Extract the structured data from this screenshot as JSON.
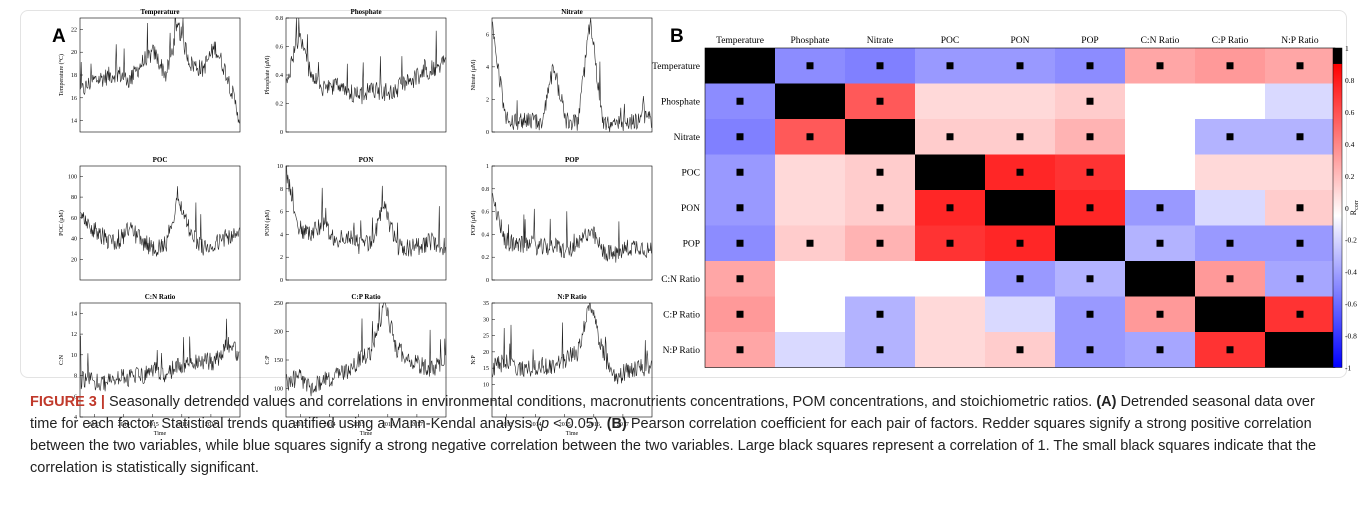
{
  "figure": {
    "panel_a_label": "A",
    "panel_b_label": "B"
  },
  "caption": {
    "fig_label": "FIGURE 3 |",
    "part1": " Seasonally detrended values and correlations in environmental conditions, macronutrients concentrations, POM concentrations, and stoichiometric ratios. ",
    "a_label": "(A)",
    "part2": " Detrended seasonal data over time for each factor. Statistical trends quantified using a Mann-Kendal analysis (",
    "p_italic": "p",
    "part3": " < 0.05). ",
    "b_label": "(B)",
    "part4": " Pearson correlation coefficient for each pair of factors. Redder squares signify a strong positive correlation between the two variables, while blue squares signify a strong negative correlation between the two variables. Large black squares represent a correlation of 1. The small black squares indicate that the correlation is statistically significant."
  },
  "chart_data": [
    {
      "type": "line",
      "title": "Temperature",
      "ylabel": "Temperature (°C)",
      "xlabel": "",
      "ylim": [
        13,
        23
      ],
      "yticks": [
        14,
        16,
        18,
        20,
        22
      ],
      "xlim": [
        2012.5,
        2018
      ],
      "xticks": [],
      "series": [
        {
          "values": [
            16.5,
            17.5,
            17.8,
            18.2,
            17.5,
            19.0,
            20.0,
            18.0,
            22.2,
            19.0,
            18.5,
            20.5,
            18.0,
            14.2
          ]
        }
      ]
    },
    {
      "type": "line",
      "title": "Phosphate",
      "ylabel": "Phosphate (μM)",
      "xlabel": "",
      "ylim": [
        0,
        0.8
      ],
      "yticks": [
        0,
        0.2,
        0.4,
        0.6,
        0.8
      ],
      "xlim": [
        2012.5,
        2018
      ],
      "xticks": [],
      "series": [
        {
          "values": [
            0.35,
            0.68,
            0.4,
            0.3,
            0.32,
            0.28,
            0.25,
            0.3,
            0.28,
            0.3,
            0.35,
            0.4,
            0.45,
            0.5
          ]
        }
      ]
    },
    {
      "type": "line",
      "title": "Nitrate",
      "ylabel": "Nitrate (μM)",
      "xlabel": "",
      "ylim": [
        0,
        7
      ],
      "yticks": [
        0,
        2,
        4,
        6
      ],
      "xlim": [
        2012.5,
        2018
      ],
      "xticks": [],
      "series": [
        {
          "values": [
            6.5,
            1.0,
            0.5,
            0.8,
            0.6,
            4.0,
            0.7,
            0.6,
            6.8,
            0.5,
            0.6,
            0.5,
            0.8,
            0.7
          ]
        }
      ]
    },
    {
      "type": "line",
      "title": "POC",
      "ylabel": "POC (μM)",
      "xlabel": "",
      "ylim": [
        0,
        110
      ],
      "yticks": [
        20,
        40,
        60,
        80,
        100
      ],
      "xlim": [
        2012.5,
        2018
      ],
      "xticks": [],
      "series": [
        {
          "values": [
            60,
            50,
            40,
            35,
            50,
            38,
            30,
            35,
            80,
            45,
            30,
            35,
            40,
            45
          ]
        }
      ]
    },
    {
      "type": "line",
      "title": "PON",
      "ylabel": "PON (μM)",
      "xlabel": "",
      "ylim": [
        0,
        10
      ],
      "yticks": [
        0,
        2,
        4,
        6,
        8,
        10
      ],
      "xlim": [
        2012.5,
        2018
      ],
      "xticks": [],
      "series": [
        {
          "values": [
            9.5,
            4.5,
            4.0,
            5.0,
            3.5,
            4.0,
            3.0,
            3.5,
            6.5,
            3.0,
            2.8,
            3.0,
            3.5,
            2.5
          ]
        }
      ]
    },
    {
      "type": "line",
      "title": "POP",
      "ylabel": "POP (μM)",
      "xlabel": "",
      "ylim": [
        0,
        1
      ],
      "yticks": [
        0,
        0.2,
        0.4,
        0.6,
        0.8,
        1
      ],
      "xlim": [
        2012.5,
        2018
      ],
      "xticks": [],
      "series": [
        {
          "values": [
            0.7,
            0.35,
            0.3,
            0.32,
            0.28,
            0.3,
            0.25,
            0.3,
            0.45,
            0.25,
            0.22,
            0.28,
            0.3,
            0.25
          ]
        }
      ]
    },
    {
      "type": "line",
      "title": "C:N Ratio",
      "ylabel": "C:N",
      "xlabel": "Time",
      "ylim": [
        4,
        15
      ],
      "yticks": [
        4,
        6,
        8,
        10,
        12,
        14
      ],
      "xlim": [
        2012.5,
        2018
      ],
      "xticks": [
        2013,
        2014,
        2015,
        2016,
        2017
      ],
      "series": [
        {
          "values": [
            7.5,
            7.5,
            7.2,
            7.8,
            7.8,
            8.0,
            8.5,
            8.2,
            9.0,
            9.0,
            9.5,
            9.2,
            11.0,
            10.0
          ]
        }
      ]
    },
    {
      "type": "line",
      "title": "C:P Ratio",
      "ylabel": "C:P",
      "xlabel": "Time",
      "ylim": [
        50,
        250
      ],
      "yticks": [
        100,
        150,
        200,
        250
      ],
      "xlim": [
        2012.5,
        2018
      ],
      "xticks": [
        2013,
        2014,
        2015,
        2016,
        2017
      ],
      "series": [
        {
          "values": [
            110,
            120,
            100,
            115,
            120,
            130,
            150,
            165,
            250,
            170,
            150,
            140,
            135,
            145
          ]
        }
      ]
    },
    {
      "type": "line",
      "title": "N:P Ratio",
      "ylabel": "N:P",
      "xlabel": "Time",
      "ylim": [
        0,
        35
      ],
      "yticks": [
        5,
        10,
        15,
        20,
        25,
        30,
        35
      ],
      "xlim": [
        2012.5,
        2018
      ],
      "xticks": [
        2013,
        2014,
        2015,
        2016,
        2017
      ],
      "series": [
        {
          "values": [
            15,
            17,
            14,
            15,
            16,
            15,
            18,
            20,
            35,
            20,
            12,
            14,
            15,
            15
          ]
        }
      ]
    },
    {
      "type": "heatmap",
      "title": "",
      "labels": [
        "Temperature",
        "Phosphate",
        "Nitrate",
        "POC",
        "PON",
        "POP",
        "C:N Ratio",
        "C:P Ratio",
        "N:P Ratio"
      ],
      "colorbar_label": "R",
      "colorbar_label_sub": "corr",
      "colorbar_ticks": [
        1,
        0.8,
        0.6,
        0.4,
        0.2,
        0,
        -0.2,
        -0.4,
        -0.6,
        -0.8,
        -1
      ],
      "colorbar_range": [
        -1,
        1
      ],
      "colors": {
        "positive": "#ff0000",
        "negative": "#0000ff",
        "zero": "#ffffff",
        "diagonal": "#000000"
      },
      "matrix": [
        [
          1.0,
          -0.45,
          -0.5,
          -0.4,
          -0.4,
          -0.45,
          0.35,
          0.4,
          0.35
        ],
        [
          -0.45,
          1.0,
          0.65,
          0.15,
          0.15,
          0.2,
          0.0,
          0.0,
          -0.15
        ],
        [
          -0.5,
          0.65,
          1.0,
          0.2,
          0.2,
          0.3,
          0.0,
          -0.3,
          -0.3
        ],
        [
          -0.4,
          0.15,
          0.2,
          1.0,
          0.85,
          0.8,
          0.0,
          0.15,
          0.15
        ],
        [
          -0.4,
          0.15,
          0.2,
          0.85,
          1.0,
          0.85,
          -0.4,
          -0.15,
          0.2
        ],
        [
          -0.45,
          0.2,
          0.3,
          0.8,
          0.85,
          1.0,
          -0.3,
          -0.4,
          -0.4
        ],
        [
          0.35,
          0.0,
          0.0,
          0.0,
          -0.4,
          -0.3,
          1.0,
          0.4,
          -0.35
        ],
        [
          0.4,
          0.0,
          -0.3,
          0.15,
          -0.15,
          -0.4,
          0.4,
          1.0,
          0.8
        ],
        [
          0.35,
          -0.15,
          -0.3,
          0.15,
          0.2,
          -0.4,
          -0.35,
          0.8,
          1.0
        ]
      ],
      "significant": [
        [
          0,
          1,
          1,
          1,
          1,
          1,
          1,
          1,
          1
        ],
        [
          1,
          0,
          1,
          0,
          0,
          1,
          0,
          0,
          0
        ],
        [
          1,
          1,
          0,
          1,
          1,
          1,
          0,
          1,
          1
        ],
        [
          1,
          0,
          1,
          0,
          1,
          1,
          0,
          0,
          0
        ],
        [
          1,
          0,
          1,
          1,
          0,
          1,
          1,
          0,
          1
        ],
        [
          1,
          1,
          1,
          1,
          1,
          0,
          1,
          1,
          1
        ],
        [
          1,
          0,
          0,
          0,
          1,
          1,
          0,
          1,
          1
        ],
        [
          1,
          0,
          1,
          0,
          0,
          1,
          1,
          0,
          1
        ],
        [
          1,
          0,
          1,
          0,
          1,
          1,
          1,
          1,
          0
        ]
      ]
    }
  ]
}
